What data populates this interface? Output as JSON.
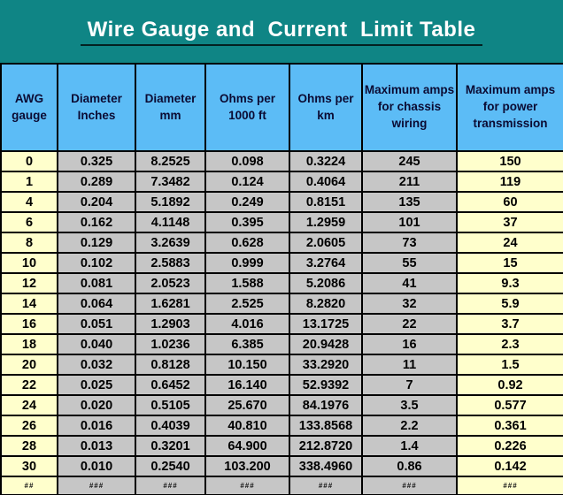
{
  "title": "Wire Gauge and  Current  Limit Table",
  "colors": {
    "banner_teal": "#0f8585",
    "header_blue": "#5cbcf6",
    "column_yellow": "#ffffcc",
    "column_gray": "#c6c6c6",
    "grid_lines": "#000000",
    "title_text": "#ffffff",
    "header_text": "#0b0b33"
  },
  "chart_data": {
    "type": "table",
    "title": "Wire Gauge and Current Limit Table",
    "columns": [
      {
        "label": "AWG\ngauge"
      },
      {
        "label": "Diameter\nInches"
      },
      {
        "label": "Diameter\nmm"
      },
      {
        "label": "Ohms per\n1000 ft"
      },
      {
        "label": "Ohms per\nkm"
      },
      {
        "label": "Maximum amps\nfor chassis\nwiring"
      },
      {
        "label": "Maximum amps\nfor power\ntransmission"
      }
    ],
    "rows": [
      [
        "0",
        "0.325",
        "8.2525",
        "0.098",
        "0.3224",
        "245",
        "150"
      ],
      [
        "1",
        "0.289",
        "7.3482",
        "0.124",
        "0.4064",
        "211",
        "119"
      ],
      [
        "4",
        "0.204",
        "5.1892",
        "0.249",
        "0.8151",
        "135",
        "60"
      ],
      [
        "6",
        "0.162",
        "4.1148",
        "0.395",
        "1.2959",
        "101",
        "37"
      ],
      [
        "8",
        "0.129",
        "3.2639",
        "0.628",
        "2.0605",
        "73",
        "24"
      ],
      [
        "10",
        "0.102",
        "2.5883",
        "0.999",
        "3.2764",
        "55",
        "15"
      ],
      [
        "12",
        "0.081",
        "2.0523",
        "1.588",
        "5.2086",
        "41",
        "9.3"
      ],
      [
        "14",
        "0.064",
        "1.6281",
        "2.525",
        "8.2820",
        "32",
        "5.9"
      ],
      [
        "16",
        "0.051",
        "1.2903",
        "4.016",
        "13.1725",
        "22",
        "3.7"
      ],
      [
        "18",
        "0.040",
        "1.0236",
        "6.385",
        "20.9428",
        "16",
        "2.3"
      ],
      [
        "20",
        "0.032",
        "0.8128",
        "10.150",
        "33.2920",
        "11",
        "1.5"
      ],
      [
        "22",
        "0.025",
        "0.6452",
        "16.140",
        "52.9392",
        "7",
        "0.92"
      ],
      [
        "24",
        "0.020",
        "0.5105",
        "25.670",
        "84.1976",
        "3.5",
        "0.577"
      ],
      [
        "26",
        "0.016",
        "0.4039",
        "40.810",
        "133.8568",
        "2.2",
        "0.361"
      ],
      [
        "28",
        "0.013",
        "0.3201",
        "64.900",
        "212.8720",
        "1.4",
        "0.226"
      ],
      [
        "30",
        "0.010",
        "0.2540",
        "103.200",
        "338.4960",
        "0.86",
        "0.142"
      ]
    ],
    "footer_marks": [
      "##",
      "###",
      "###",
      "###",
      "###",
      "###",
      "###"
    ]
  }
}
